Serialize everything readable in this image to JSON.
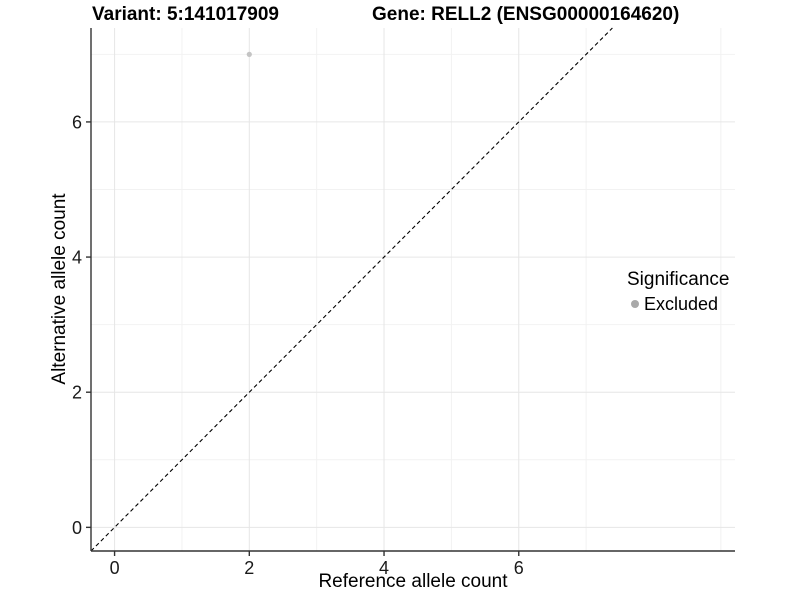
{
  "header": {
    "variant_title": "Variant: 5:141017909",
    "gene_title": "Gene: RELL2 (ENSG00000164620)"
  },
  "axes": {
    "x_label": "Reference allele count",
    "y_label": "Alternative allele count"
  },
  "legend": {
    "title": "Significance",
    "items": [
      {
        "label": "Excluded",
        "color": "#a9a9a9"
      }
    ]
  },
  "chart_data": {
    "type": "scatter",
    "title": "Variant: 5:141017909   Gene: RELL2 (ENSG00000164620)",
    "xlabel": "Reference allele count",
    "ylabel": "Alternative allele count",
    "xlim": [
      -0.35,
      9.21
    ],
    "ylim": [
      -0.35,
      7.39
    ],
    "x_ticks": [
      0,
      2,
      4,
      6
    ],
    "y_ticks": [
      0,
      2,
      4,
      6
    ],
    "x_minor_ticks": [
      1,
      3,
      5,
      7,
      9
    ],
    "y_minor_ticks": [
      1,
      3,
      5,
      7
    ],
    "grid": true,
    "legend_position": "inside-right",
    "series": [
      {
        "name": "Excluded",
        "points": [
          {
            "x": 2,
            "y": 7
          }
        ]
      }
    ],
    "identity_line": {
      "style": "dashed",
      "slope": 1,
      "intercept": 0
    },
    "colors": {
      "point": "#c4c4c4",
      "legend_key": "#a9a9a9",
      "grid_major": "#e6e6e6",
      "grid_minor": "#f2f2f2",
      "axis_line": "#333333",
      "tick_mark": "#333333",
      "tick_label": "#1a1a1a",
      "identity_line": "#000000"
    }
  }
}
